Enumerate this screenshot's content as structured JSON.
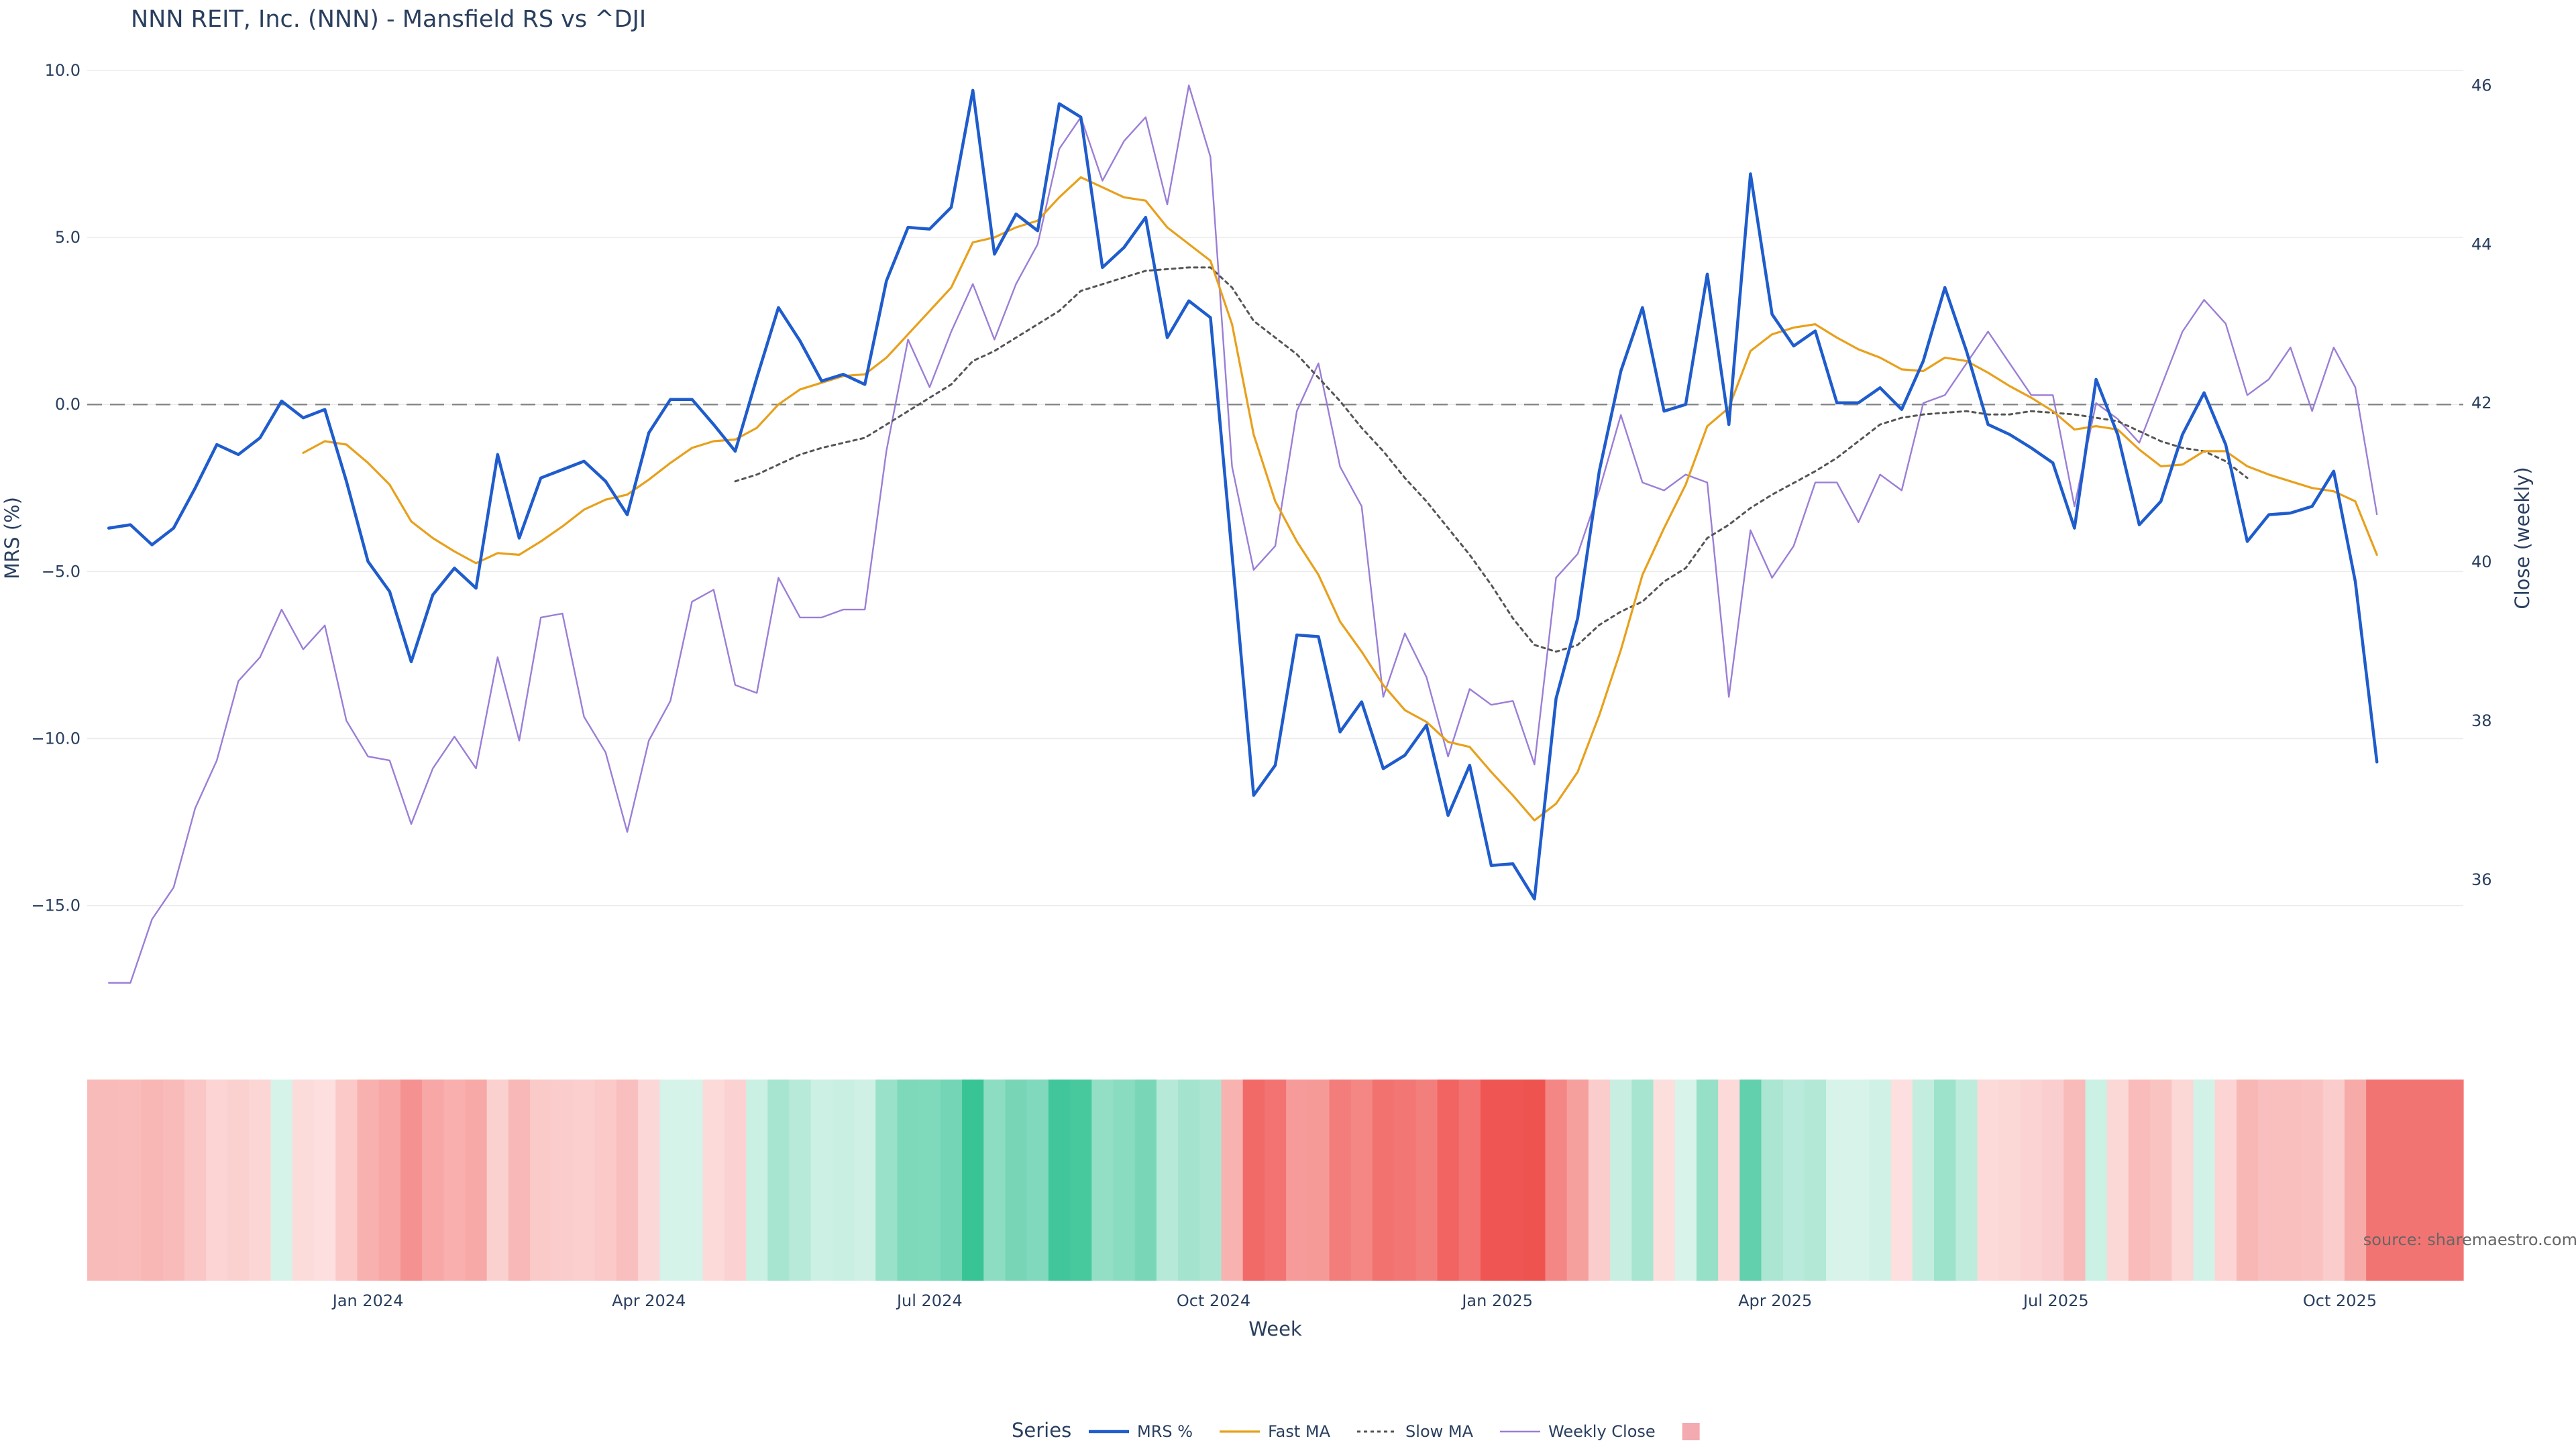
{
  "chart_data": {
    "type": "line",
    "title": "NNN REIT, Inc. (NNN) - Mansfield RS vs ^DJI",
    "xlabel": "Week",
    "ylabel": "MRS (%)",
    "y2label": "Close (weekly)",
    "ylim": [
      -18.5,
      10.5
    ],
    "y2lim": [
      34.2,
      46.4
    ],
    "yticks": [
      10.0,
      5.0,
      0.0,
      -5.0,
      -10.0,
      -15.0
    ],
    "ytick_labels": [
      "10.0",
      "5.0",
      "0.0",
      "−5.0",
      "−10.0",
      "−15.0"
    ],
    "y2ticks": [
      46,
      44,
      42,
      40,
      38,
      36
    ],
    "y2tick_labels": [
      "46",
      "44",
      "42",
      "40",
      "38",
      "36"
    ],
    "x_range": [
      "2023-10-02",
      "2025-11-10"
    ],
    "xticks": [
      "2024-01-01",
      "2024-04-01",
      "2024-07-01",
      "2024-10-01",
      "2025-01-01",
      "2025-04-01",
      "2025-07-01",
      "2025-10-01"
    ],
    "xtick_labels": [
      "Jan 2024",
      "Apr 2024",
      "Jul 2024",
      "Oct 2024",
      "Jan 2025",
      "Apr 2025",
      "Jul 2025",
      "Oct 2025"
    ],
    "reference_line": {
      "y": 0,
      "style": "dashed"
    },
    "start_week": "2023-10-09",
    "week_step_days": 7,
    "series": [
      {
        "name": "MRS %",
        "color": "#1f5ccc",
        "style": "solid-thick",
        "axis": "y",
        "values": [
          -3.7,
          -3.6,
          -4.2,
          -3.7,
          -2.5,
          -1.2,
          -1.5,
          -1.0,
          0.1,
          -0.4,
          -0.15,
          -2.3,
          -4.7,
          -5.6,
          -7.7,
          -5.7,
          -4.9,
          -5.5,
          -1.5,
          -4.0,
          -2.2,
          -1.95,
          -1.7,
          -2.3,
          -3.3,
          -0.85,
          0.15,
          0.15,
          -0.6,
          -1.4,
          0.8,
          2.9,
          1.9,
          0.7,
          0.9,
          0.6,
          3.7,
          5.3,
          5.25,
          5.9,
          9.4,
          4.5,
          5.7,
          5.2,
          9.0,
          8.6,
          4.1,
          4.7,
          5.6,
          2.0,
          3.1,
          2.6,
          -4.5,
          -11.7,
          -10.8,
          -6.9,
          -6.95,
          -9.8,
          -8.9,
          -10.9,
          -10.5,
          -9.6,
          -12.3,
          -10.8,
          -13.8,
          -13.75,
          -14.8,
          -8.8,
          -6.4,
          -2.0,
          1.0,
          2.9,
          -0.2,
          0.0,
          3.9,
          -0.6,
          6.9,
          2.7,
          1.75,
          2.2,
          0.05,
          0.05,
          0.5,
          -0.15,
          1.3,
          3.5,
          1.6,
          -0.6,
          -0.9,
          -1.3,
          -1.75,
          -3.7,
          0.75,
          -0.9,
          -3.6,
          -2.9,
          -0.9,
          0.35,
          -1.2,
          -4.1,
          -3.3,
          -3.25,
          -3.05,
          -2.0,
          -5.3,
          -10.7
        ]
      },
      {
        "name": "Fast MA",
        "color": "#e8a01c",
        "style": "solid",
        "axis": "y",
        "start_index": 9,
        "values": [
          -1.45,
          -1.1,
          -1.2,
          -1.75,
          -2.4,
          -3.5,
          -4.0,
          -4.4,
          -4.75,
          -4.45,
          -4.5,
          -4.1,
          -3.65,
          -3.15,
          -2.85,
          -2.7,
          -2.25,
          -1.75,
          -1.3,
          -1.1,
          -1.05,
          -0.7,
          0.0,
          0.45,
          0.65,
          0.85,
          0.9,
          1.4,
          2.1,
          2.8,
          3.5,
          4.85,
          5.0,
          5.3,
          5.5,
          6.2,
          6.8,
          6.5,
          6.2,
          6.1,
          5.3,
          4.8,
          4.3,
          2.4,
          -0.9,
          -2.9,
          -4.1,
          -5.1,
          -6.5,
          -7.4,
          -8.4,
          -9.15,
          -9.5,
          -10.1,
          -10.25,
          -11.0,
          -11.7,
          -12.45,
          -11.95,
          -11.0,
          -9.3,
          -7.35,
          -5.1,
          -3.7,
          -2.4,
          -0.65,
          -0.1,
          1.6,
          2.1,
          2.3,
          2.4,
          2.0,
          1.65,
          1.4,
          1.05,
          1.0,
          1.4,
          1.3,
          0.95,
          0.55,
          0.2,
          -0.2,
          -0.75,
          -0.65,
          -0.75,
          -1.35,
          -1.85,
          -1.8,
          -1.4,
          -1.4,
          -1.85,
          -2.1,
          -2.3,
          -2.5,
          -2.6,
          -2.9,
          -4.5
        ]
      },
      {
        "name": "Slow MA",
        "color": "#555555",
        "style": "dotted",
        "axis": "y",
        "start_index": 29,
        "values": [
          -2.3,
          -2.1,
          -1.8,
          -1.5,
          -1.3,
          -1.15,
          -1.0,
          -0.6,
          -0.2,
          0.2,
          0.6,
          1.3,
          1.6,
          2.0,
          2.4,
          2.8,
          3.4,
          3.6,
          3.8,
          4.0,
          4.05,
          4.1,
          4.1,
          3.5,
          2.5,
          2.0,
          1.5,
          0.8,
          0.1,
          -0.7,
          -1.4,
          -2.2,
          -2.9,
          -3.7,
          -4.5,
          -5.4,
          -6.4,
          -7.2,
          -7.4,
          -7.2,
          -6.6,
          -6.2,
          -5.9,
          -5.3,
          -4.9,
          -4.0,
          -3.6,
          -3.1,
          -2.7,
          -2.35,
          -2.0,
          -1.6,
          -1.1,
          -0.6,
          -0.4,
          -0.3,
          -0.25,
          -0.2,
          -0.3,
          -0.3,
          -0.2,
          -0.25,
          -0.3,
          -0.4,
          -0.5,
          -0.8,
          -1.1,
          -1.3,
          -1.4,
          -1.7,
          -2.2
        ]
      },
      {
        "name": "Weekly Close",
        "color": "#9b7ed6",
        "style": "solid-thin",
        "axis": "y2",
        "values": [
          34.7,
          34.7,
          35.5,
          35.9,
          36.9,
          37.5,
          38.5,
          38.8,
          39.4,
          38.9,
          39.2,
          38.0,
          37.55,
          37.5,
          36.7,
          37.4,
          37.8,
          37.4,
          38.8,
          37.75,
          39.3,
          39.35,
          38.05,
          37.6,
          36.6,
          37.75,
          38.25,
          39.5,
          39.65,
          38.45,
          38.35,
          39.8,
          39.3,
          39.3,
          39.4,
          39.4,
          41.4,
          42.8,
          42.2,
          42.9,
          43.5,
          42.8,
          43.5,
          44.0,
          45.2,
          45.6,
          44.8,
          45.3,
          45.6,
          44.5,
          46.0,
          45.1,
          41.2,
          39.9,
          40.2,
          41.9,
          42.5,
          41.2,
          40.7,
          38.3,
          39.1,
          38.55,
          37.55,
          38.4,
          38.2,
          38.25,
          37.45,
          39.8,
          40.1,
          40.9,
          41.85,
          41.0,
          40.9,
          41.1,
          41.0,
          38.3,
          40.4,
          39.8,
          40.2,
          41.0,
          41.0,
          40.5,
          41.1,
          40.9,
          42.0,
          42.1,
          42.5,
          42.9,
          42.5,
          42.1,
          42.1,
          40.7,
          42.0,
          41.8,
          41.5,
          42.2,
          42.9,
          43.3,
          43.0,
          42.1,
          42.3,
          42.7,
          41.9,
          42.7,
          42.2,
          40.6
        ]
      }
    ],
    "heatmap": {
      "description": "MRS colour band, one cell per week",
      "colormap": "red (negative) to green (positive)",
      "source_series": "MRS %"
    },
    "legend": {
      "title": "Series",
      "position": "bottom-center"
    },
    "annotation": "source: sharemaestro.com"
  }
}
